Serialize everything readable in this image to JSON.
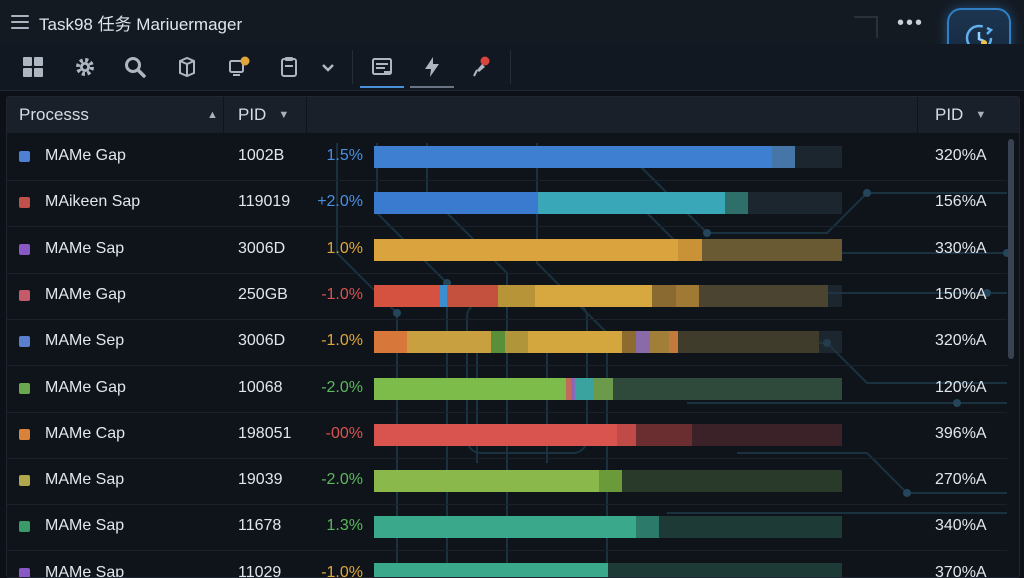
{
  "app": {
    "title": "Task98 任务 Mariuermager"
  },
  "toolbar": {
    "icons": [
      "grid-icon",
      "gear-icon",
      "search-icon",
      "box-icon",
      "app-alert-icon",
      "clipboard-icon",
      "chevron-down-icon",
      "list-icon",
      "lightning-icon",
      "pin-icon"
    ]
  },
  "header": {
    "process_label": "Processs",
    "pid_label": "PID",
    "mem_label": "PID"
  },
  "rows": [
    {
      "name": "MAMe Gap",
      "pid": "1002B",
      "pct": "1.5%",
      "pct_color": "#4a90e2",
      "mem": "320%A",
      "dot": "#4f7fd4",
      "segments": [
        {
          "color": "#3e7fd1",
          "frac": 0.85
        },
        {
          "color": "#5aa0e8",
          "frac": 0.0
        },
        {
          "color": "#4675a8",
          "frac": 0.05
        }
      ]
    },
    {
      "name": "MAikeen Sap",
      "pid": "119019",
      "pct": "+2.0%",
      "pct_color": "#4a90e2",
      "mem": "156%A",
      "dot": "#c0504a",
      "segments": [
        {
          "color": "#3a7bcf",
          "frac": 0.35
        },
        {
          "color": "#3aa7b8",
          "frac": 0.4
        },
        {
          "color": "#2f6f6a",
          "frac": 0.05
        }
      ]
    },
    {
      "name": "MAMe Sap",
      "pid": "3006D",
      "pct": "1.0%",
      "pct_color": "#e0a63a",
      "mem": "330%A",
      "dot": "#8a58c4",
      "segments": [
        {
          "color": "#dba33e",
          "frac": 0.65
        },
        {
          "color": "#c99236",
          "frac": 0.05
        },
        {
          "color": "#6a5a34",
          "frac": 0.3
        }
      ]
    },
    {
      "name": "MAMe Gap",
      "pid": "250GB",
      "pct": "-1.0%",
      "pct_color": "#d9534f",
      "mem": "150%A",
      "dot": "#c45a6a",
      "segments": [
        {
          "color": "#d4523f",
          "frac": 0.14
        },
        {
          "color": "#3a8fd0",
          "frac": 0.015
        },
        {
          "color": "#c4503e",
          "frac": 0.11
        },
        {
          "color": "#b89438",
          "frac": 0.08
        },
        {
          "color": "#d7a840",
          "frac": 0.25
        },
        {
          "color": "#8a6a30",
          "frac": 0.05
        },
        {
          "color": "#a07a34",
          "frac": 0.05
        },
        {
          "color": "#4a4430",
          "frac": 0.275
        }
      ]
    },
    {
      "name": "MAMe Sep",
      "pid": "3006D",
      "pct": "-1.0%",
      "pct_color": "#e0a63a",
      "mem": "320%A",
      "dot": "#5a7fcc",
      "segments": [
        {
          "color": "#d8773a",
          "frac": 0.07
        },
        {
          "color": "#c9a040",
          "frac": 0.18
        },
        {
          "color": "#5a8f3a",
          "frac": 0.03
        },
        {
          "color": "#b0953a",
          "frac": 0.05
        },
        {
          "color": "#d3a63e",
          "frac": 0.2
        },
        {
          "color": "#8c6a30",
          "frac": 0.03
        },
        {
          "color": "#8a6aa8",
          "frac": 0.03
        },
        {
          "color": "#a08038",
          "frac": 0.04
        },
        {
          "color": "#c47a3c",
          "frac": 0.02
        },
        {
          "color": "#3f3c2c",
          "frac": 0.3
        }
      ]
    },
    {
      "name": "MAMe Gap",
      "pid": "10068",
      "pct": "-2.0%",
      "pct_color": "#5cb85c",
      "mem": "120%A",
      "dot": "#6aa84f",
      "segments": [
        {
          "color": "#7dbb4a",
          "frac": 0.41
        },
        {
          "color": "#c46a5a",
          "frac": 0.01
        },
        {
          "color": "#8a6ab8",
          "frac": 0.01
        },
        {
          "color": "#3aa3a0",
          "frac": 0.04
        },
        {
          "color": "#6a9a4a",
          "frac": 0.04
        },
        {
          "color": "#2f4a3a",
          "frac": 0.49
        }
      ]
    },
    {
      "name": "MAMe Cap",
      "pid": "198051",
      "pct": "-00%",
      "pct_color": "#d9534f",
      "mem": "396%A",
      "dot": "#d9823a",
      "segments": [
        {
          "color": "#d9534f",
          "frac": 0.52
        },
        {
          "color": "#c04a48",
          "frac": 0.04
        },
        {
          "color": "#6a2e30",
          "frac": 0.12
        },
        {
          "color": "#3a2228",
          "frac": 0.32
        }
      ]
    },
    {
      "name": "MAMe Sap",
      "pid": "19039",
      "pct": "-2.0%",
      "pct_color": "#5cb85c",
      "mem": "270%A",
      "dot": "#b0a84a",
      "segments": [
        {
          "color": "#8ab84a",
          "frac": 0.48
        },
        {
          "color": "#6a9a3a",
          "frac": 0.05
        },
        {
          "color": "#2a3a2a",
          "frac": 0.47
        }
      ]
    },
    {
      "name": "MAMe Sap",
      "pid": "11678",
      "pct": "1.3%",
      "pct_color": "#5cb85c",
      "mem": "340%A",
      "dot": "#3a9a6a",
      "segments": [
        {
          "color": "#3aa88a",
          "frac": 0.56
        },
        {
          "color": "#2c7a6a",
          "frac": 0.05
        },
        {
          "color": "#1e3a36",
          "frac": 0.39
        }
      ]
    },
    {
      "name": "MAMe Sap",
      "pid": "11029",
      "pct": "-1.0%",
      "pct_color": "#e0a63a",
      "mem": "370%A",
      "dot": "#8a58c4",
      "segments": [
        {
          "color": "#3aa88a",
          "frac": 0.5
        },
        {
          "color": "#1e3a36",
          "frac": 0.5
        }
      ]
    }
  ]
}
